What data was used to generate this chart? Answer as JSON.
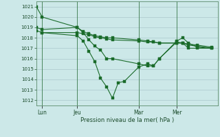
{
  "background_color": "#cce8e8",
  "grid_color_major": "#aac8cc",
  "grid_color_minor": "#c0dada",
  "line_color": "#1a6b2a",
  "ylabel_text": "Pression niveau de la mer( hPa )",
  "ylim": [
    1011.5,
    1021.5
  ],
  "yticks": [
    1012,
    1013,
    1014,
    1015,
    1016,
    1017,
    1018,
    1019,
    1020,
    1021
  ],
  "x_tick_labels": [
    "Lun",
    "Jeu",
    "Mar",
    "Mer"
  ],
  "x_tick_positions": [
    2,
    14,
    35,
    48
  ],
  "x_vline_positions": [
    2,
    14,
    35,
    48
  ],
  "xlim": [
    0,
    62
  ],
  "series": [
    {
      "x": [
        0,
        2,
        14,
        16,
        18,
        20,
        22,
        24,
        26,
        35,
        38,
        40,
        42,
        48,
        50,
        52,
        55,
        60
      ],
      "y": [
        1021,
        1020,
        1019,
        1018.5,
        1017.8,
        1017.2,
        1016.8,
        1016.0,
        1016.0,
        1015.5,
        1015.3,
        1015.3,
        1016.0,
        1017.6,
        1017.5,
        1017.0,
        1017.0,
        1017.0
      ]
    },
    {
      "x": [
        0,
        2,
        14,
        16,
        18,
        20,
        22,
        24,
        26,
        35,
        38,
        40,
        42,
        48,
        50,
        52,
        55,
        60
      ],
      "y": [
        1019,
        1018.8,
        1019.0,
        1018.6,
        1018.4,
        1018.2,
        1018.1,
        1018.0,
        1018.0,
        1017.8,
        1017.7,
        1017.6,
        1017.5,
        1017.5,
        1017.5,
        1017.3,
        1017.2,
        1017.0
      ]
    },
    {
      "x": [
        0,
        2,
        14,
        16,
        18,
        20,
        22,
        24,
        26,
        35,
        38,
        40,
        42,
        48,
        50,
        52,
        55,
        60
      ],
      "y": [
        1018.7,
        1018.5,
        1018.5,
        1018.4,
        1018.3,
        1018.1,
        1018.0,
        1017.9,
        1017.8,
        1017.7,
        1017.6,
        1017.6,
        1017.5,
        1017.5,
        1017.5,
        1017.4,
        1017.3,
        1017.1
      ]
    },
    {
      "x": [
        2,
        14,
        16,
        18,
        20,
        22,
        24,
        26,
        28,
        30,
        35,
        38,
        40,
        42,
        48,
        50,
        52,
        55,
        60
      ],
      "y": [
        1018.5,
        1018.2,
        1017.7,
        1016.7,
        1015.7,
        1014.1,
        1013.3,
        1012.2,
        1013.7,
        1013.8,
        1015.2,
        1015.5,
        1015.3,
        1016.0,
        1017.7,
        1018.0,
        1017.5,
        1017.1,
        1017.0
      ]
    }
  ]
}
